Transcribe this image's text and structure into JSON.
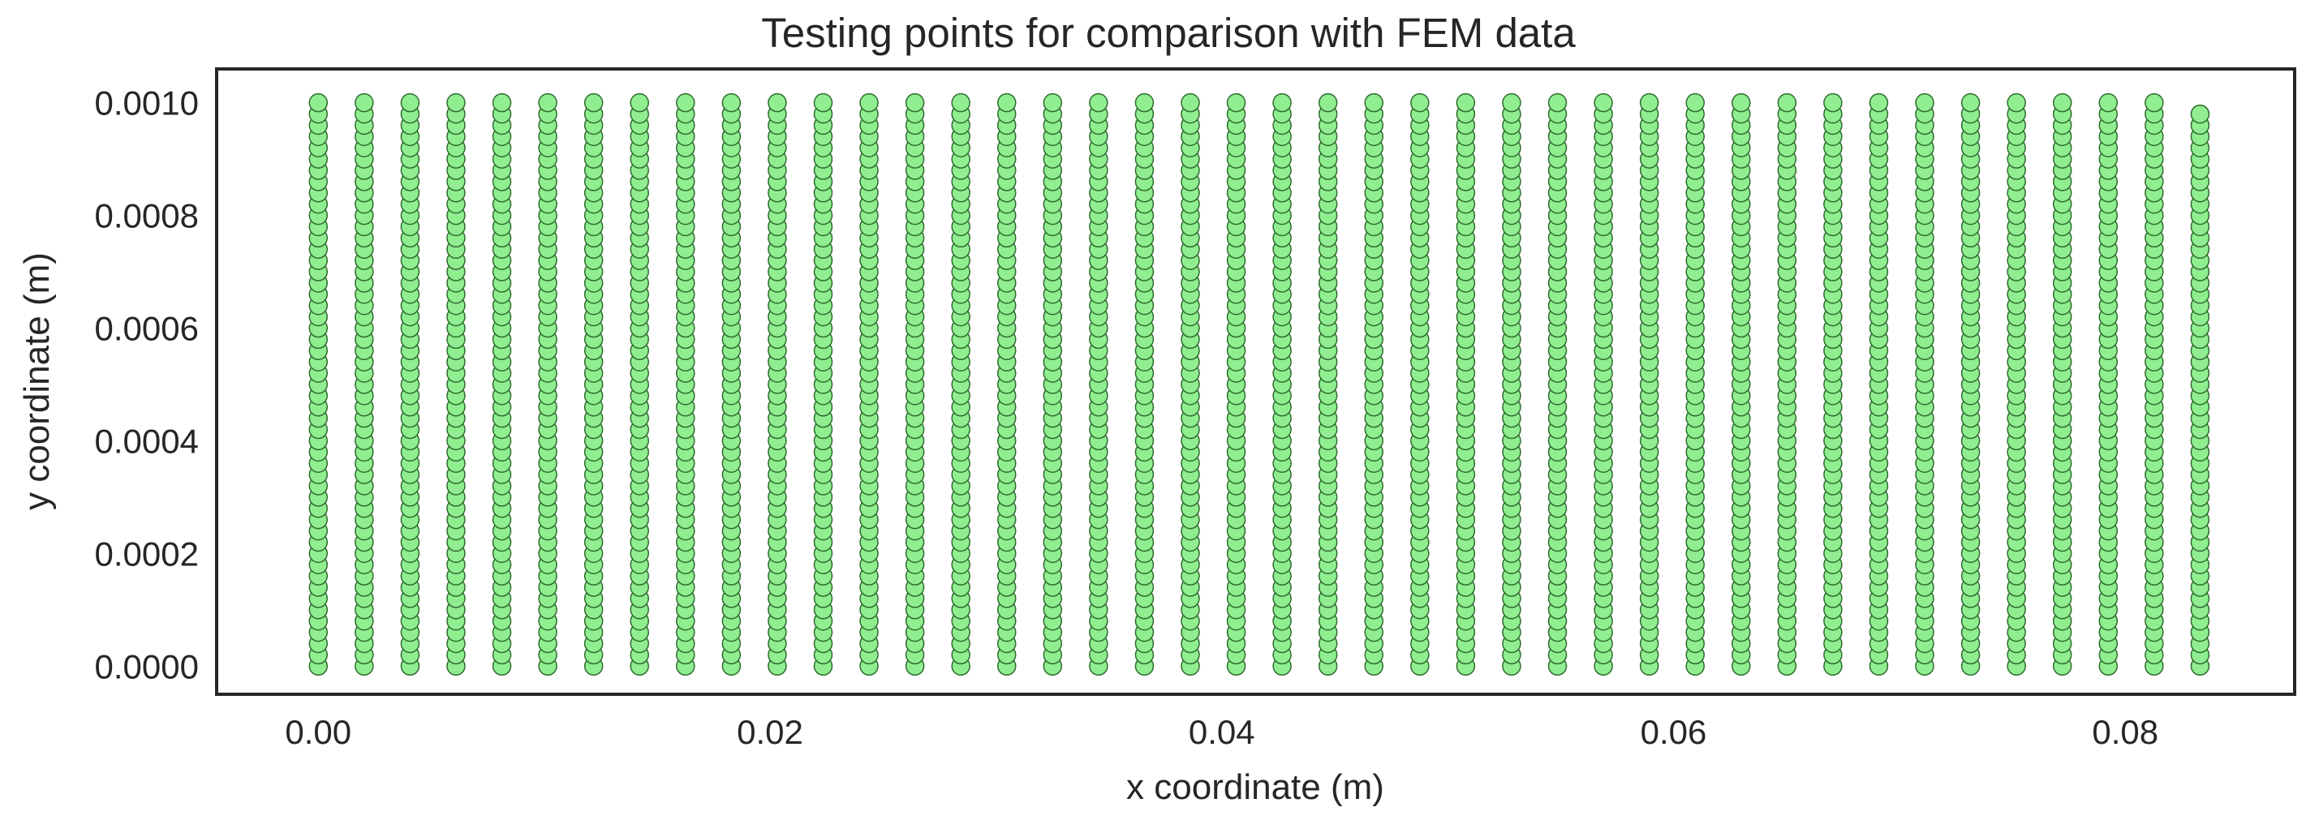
{
  "chart_data": {
    "type": "scatter",
    "title": "Testing points for comparison with FEM data",
    "xlabel": "x coordinate (m)",
    "ylabel": "y coordinate (m)",
    "xlim": [
      -0.0045,
      0.0875
    ],
    "ylim": [
      -5e-05,
      0.00106
    ],
    "xticks": [
      0.0,
      0.02,
      0.04,
      0.06,
      0.08
    ],
    "xtick_labels": [
      "0.00",
      "0.02",
      "0.04",
      "0.06",
      "0.08"
    ],
    "yticks": [
      0.0,
      0.0002,
      0.0004,
      0.0006,
      0.0008,
      0.001
    ],
    "ytick_labels": [
      "0.0000",
      "0.0002",
      "0.0004",
      "0.0006",
      "0.0008",
      "0.0010"
    ],
    "grid": false,
    "marker_face_color": "#90ee90",
    "marker_edge_color": "#2e6b2e",
    "grid_description": {
      "x_columns": [
        0.0,
        0.002032,
        0.004064,
        0.006096,
        0.008128,
        0.01016,
        0.012192,
        0.014224,
        0.016256,
        0.018288,
        0.02032,
        0.022352,
        0.024384,
        0.026416,
        0.028448,
        0.03048,
        0.032512,
        0.034544,
        0.036576,
        0.038608,
        0.04064,
        0.042672,
        0.044704,
        0.046736,
        0.048768,
        0.0508,
        0.052832,
        0.054864,
        0.056896,
        0.058928,
        0.06096,
        0.062992,
        0.065024,
        0.067056,
        0.069088,
        0.07112,
        0.073152,
        0.075184,
        0.077216,
        0.079248,
        0.08128,
        0.083312
      ],
      "y_rows_full": [
        0.0,
        2e-05,
        4e-05,
        6e-05,
        8e-05,
        0.0001,
        0.00012,
        0.00014,
        0.00016,
        0.00018,
        0.0002,
        0.00022,
        0.00024,
        0.00026,
        0.00028,
        0.0003,
        0.00032,
        0.00034,
        0.00036,
        0.00038,
        0.0004,
        0.00042,
        0.00044,
        0.00046,
        0.00048,
        0.0005,
        0.00052,
        0.00054,
        0.00056,
        0.00058,
        0.0006,
        0.00062,
        0.00064,
        0.00066,
        0.00068,
        0.0007,
        0.00072,
        0.00074,
        0.00076,
        0.00078,
        0.0008,
        0.00082,
        0.00084,
        0.00086,
        0.00088,
        0.0009,
        0.00092,
        0.00094,
        0.00096,
        0.00098,
        0.001
      ],
      "last_column_y_max": 0.00098
    }
  }
}
